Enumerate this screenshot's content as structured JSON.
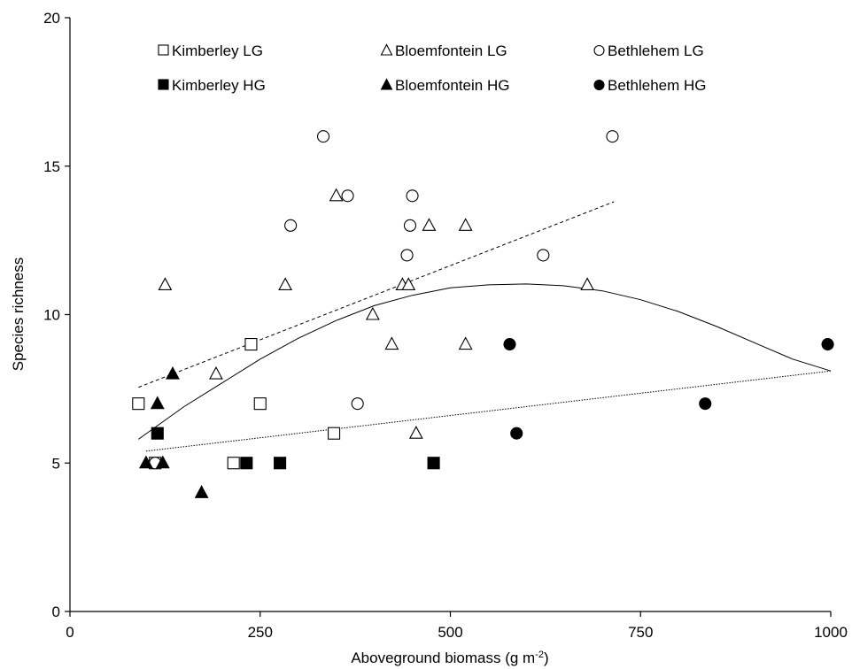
{
  "chart_data": {
    "type": "scatter",
    "title": "",
    "xlabel": "Aboveground biomass (g m",
    "xlabel_sup": "-2",
    "xlabel_end": ")",
    "ylabel": "Species richness",
    "xlim": [
      0,
      1000
    ],
    "ylim": [
      0,
      20
    ],
    "xticks": [
      0,
      250,
      500,
      750,
      1000
    ],
    "yticks": [
      0,
      5,
      10,
      15,
      20
    ],
    "grid": false,
    "legend_placement": "top",
    "series": [
      {
        "name": "Kimberley LG",
        "marker": "square",
        "filled": false,
        "points": [
          [
            90,
            7
          ],
          [
            112,
            5
          ],
          [
            215,
            5
          ],
          [
            238,
            9
          ],
          [
            250,
            7
          ],
          [
            347,
            6
          ]
        ]
      },
      {
        "name": "Bloemfontein LG",
        "marker": "triangle",
        "filled": false,
        "points": [
          [
            125,
            11
          ],
          [
            192,
            8
          ],
          [
            283,
            11
          ],
          [
            350,
            14
          ],
          [
            398,
            10
          ],
          [
            423,
            9
          ],
          [
            437,
            11
          ],
          [
            445,
            11
          ],
          [
            455,
            6
          ],
          [
            472,
            13
          ],
          [
            520,
            13
          ],
          [
            520,
            9
          ],
          [
            680,
            11
          ]
        ]
      },
      {
        "name": "Bethlehem LG",
        "marker": "circle",
        "filled": false,
        "points": [
          [
            112,
            5
          ],
          [
            290,
            13
          ],
          [
            333,
            16
          ],
          [
            365,
            14
          ],
          [
            378,
            7
          ],
          [
            443,
            12
          ],
          [
            447,
            13
          ],
          [
            450,
            14
          ],
          [
            622,
            12
          ],
          [
            713,
            16
          ]
        ]
      },
      {
        "name": "Kimberley HG",
        "marker": "square",
        "filled": true,
        "points": [
          [
            115,
            6
          ],
          [
            232,
            5
          ],
          [
            276,
            5
          ],
          [
            478,
            5
          ]
        ]
      },
      {
        "name": "Bloemfontein HG",
        "marker": "triangle",
        "filled": true,
        "points": [
          [
            100,
            5
          ],
          [
            115,
            7
          ],
          [
            122,
            5
          ],
          [
            135,
            8
          ],
          [
            173,
            4
          ]
        ]
      },
      {
        "name": "Bethlehem HG",
        "marker": "circle",
        "filled": true,
        "points": [
          [
            578,
            9
          ],
          [
            587,
            6
          ],
          [
            835,
            7
          ],
          [
            996,
            9
          ]
        ]
      }
    ],
    "fits": [
      {
        "style": "dashed",
        "points": [
          [
            90,
            7.55
          ],
          [
            715,
            13.8
          ]
        ]
      },
      {
        "style": "solid",
        "points": [
          [
            90,
            5.8
          ],
          [
            150,
            6.9
          ],
          [
            200,
            7.7
          ],
          [
            250,
            8.5
          ],
          [
            300,
            9.2
          ],
          [
            350,
            9.8
          ],
          [
            400,
            10.3
          ],
          [
            450,
            10.65
          ],
          [
            500,
            10.9
          ],
          [
            550,
            11.0
          ],
          [
            600,
            11.03
          ],
          [
            650,
            10.97
          ],
          [
            700,
            10.8
          ],
          [
            750,
            10.5
          ],
          [
            800,
            10.1
          ],
          [
            850,
            9.6
          ],
          [
            900,
            9.05
          ],
          [
            950,
            8.5
          ],
          [
            1000,
            8.1
          ]
        ]
      },
      {
        "style": "dotted",
        "points": [
          [
            100,
            5.4
          ],
          [
            1000,
            8.1
          ]
        ]
      }
    ]
  }
}
